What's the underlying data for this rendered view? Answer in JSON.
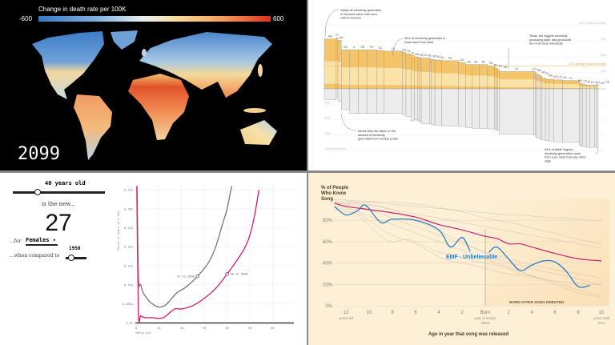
{
  "chart_data": [
    {
      "type": "heatmap",
      "subtype": "choropleth-world-map",
      "legend": {
        "title": "Change in death rate per 100K",
        "min_label": "-600",
        "max_label": "600",
        "min": -600,
        "max": 600,
        "colors": [
          "#3b78c4",
          "#e8eef0",
          "#f7dc98",
          "#dc3220"
        ]
      },
      "year": "2099",
      "background": "#000000"
    },
    {
      "type": "bar",
      "subtype": "variable-width diverging bars (clean vs fossil electricity by state)",
      "colors": {
        "clean": "#f5c469",
        "clean_light": "#fbe3a8",
        "fossil": "#ececec",
        "outline": "#9a9a9a",
        "average": "#f0c36a"
      },
      "gridlines_up": [
        {
          "value": 100,
          "label": "100% clean electricity"
        },
        {
          "value": 75,
          "label": "75%"
        },
        {
          "value": 50,
          "label": "50%"
        },
        {
          "value": 25,
          "label": "25%"
        }
      ],
      "gridlines_down": [
        {
          "value": 25,
          "label": "25%"
        },
        {
          "value": 50,
          "label": "50%"
        },
        {
          "value": 75,
          "label": "75%"
        },
        {
          "value": 100,
          "label": "100% fossil fuels"
        }
      ],
      "average": {
        "value": 36,
        "label": "U.S. average clean electricity"
      },
      "states": [
        {
          "label": "WA",
          "share": 7,
          "clean": 78,
          "fossil": 18
        },
        {
          "label": "VT",
          "share": 1,
          "clean": 80,
          "fossil": 14
        },
        {
          "label": "NH",
          "share": 2,
          "clean": 76,
          "fossil": 20
        },
        {
          "label": "SD",
          "share": 5,
          "clean": 61,
          "fossil": 33
        },
        {
          "label": "IL",
          "share": 5,
          "clean": 61,
          "fossil": 40
        },
        {
          "label": "OR",
          "share": 5,
          "clean": 61,
          "fossil": 40
        },
        {
          "label": "NY",
          "share": 6,
          "clean": 61,
          "fossil": 40
        },
        {
          "label": "SC",
          "share": 4,
          "clean": 60,
          "fossil": 40
        },
        {
          "label": "CA",
          "share": 11,
          "clean": 59,
          "fossil": 40
        },
        {
          "label": "KS",
          "share": 2,
          "clean": 57,
          "fossil": 42
        },
        {
          "label": "TN",
          "share": 3,
          "clean": 55,
          "fossil": 45
        },
        {
          "label": "IA",
          "share": 2,
          "clean": 52,
          "fossil": 52
        },
        {
          "label": "MN",
          "share": 2,
          "clean": 50,
          "fossil": 50
        },
        {
          "label": "NE",
          "share": 1,
          "clean": 49,
          "fossil": 52
        },
        {
          "label": "ID",
          "share": 1,
          "clean": 49,
          "fossil": 53
        },
        {
          "label": "NC",
          "share": 5,
          "clean": 48,
          "fossil": 57
        },
        {
          "label": "MT",
          "share": 1,
          "clean": 47,
          "fossil": 57
        },
        {
          "label": "NJ",
          "share": 2,
          "clean": 46,
          "fossil": 58
        },
        {
          "label": "AL",
          "share": 4,
          "clean": 45,
          "fossil": 59
        },
        {
          "label": "PA",
          "share": 10,
          "clean": 44,
          "fossil": 60
        },
        {
          "label": "AZ",
          "share": 4,
          "clean": 41,
          "fossil": 61
        },
        {
          "label": "OK",
          "share": 4,
          "clean": 38,
          "fossil": 63
        },
        {
          "label": "VA",
          "share": 4,
          "clean": 38,
          "fossil": 64
        },
        {
          "label": "MI",
          "share": 5,
          "clean": 38,
          "fossil": 64
        },
        {
          "label": "GA",
          "share": 4,
          "clean": 36,
          "fossil": 65
        },
        {
          "label": "ND",
          "share": 1,
          "clean": 33,
          "fossil": 66
        },
        {
          "label": "NV",
          "share": 1,
          "clean": 32,
          "fossil": 67
        },
        {
          "label": "AR",
          "share": 1,
          "clean": 30,
          "fossil": 68
        },
        {
          "label": "TX",
          "share": 20,
          "clean": 27,
          "fossil": 73
        },
        {
          "label": "CO",
          "share": 1,
          "clean": 27,
          "fossil": 75
        },
        {
          "label": "NM",
          "share": 1,
          "clean": 25,
          "fossil": 78
        },
        {
          "label": "WI",
          "share": 2,
          "clean": 22,
          "fossil": 80
        },
        {
          "label": "HI",
          "share": 1,
          "clean": 20,
          "fossil": 82
        },
        {
          "label": "MS",
          "share": 2,
          "clean": 17,
          "fossil": 83
        },
        {
          "label": "MD",
          "share": 2,
          "clean": 15,
          "fossil": 84
        },
        {
          "label": "LA",
          "share": 3,
          "clean": 15,
          "fossil": 85
        },
        {
          "label": "OH",
          "share": 5,
          "clean": 14,
          "fossil": 86
        },
        {
          "label": "FL",
          "share": 10,
          "clean": 13,
          "fossil": 87
        },
        {
          "label": "WY",
          "share": 1,
          "clean": 9,
          "fossil": 92
        },
        {
          "label": "UT",
          "share": 1,
          "clean": 8,
          "fossil": 93
        },
        {
          "label": "IN",
          "share": 2,
          "clean": 7,
          "fossil": 94
        },
        {
          "label": "KY",
          "share": 2,
          "clean": 6,
          "fossil": 95
        },
        {
          "label": "MO",
          "share": 3,
          "clean": 6,
          "fossil": 95
        },
        {
          "label": "WV",
          "share": 1,
          "clean": 5,
          "fossil": 94
        },
        {
          "label": "DE",
          "share": 1,
          "clean": 7,
          "fossil": 96
        }
      ],
      "annotations": [
        {
          "lines": [
            "Nearly all electricity generated",
            "in Vermont came from zero-",
            "carbon sources"
          ]
        },
        {
          "lines": [
            "42% of electricity generated in",
            "Iowa came from wind"
          ]
        },
        {
          "lines": [
            "Texas, the biggest electricity",
            "producing state, also produced",
            "the most clean electricity"
          ]
        },
        {
          "lines": [
            "Illinois lead the nation in the",
            "amount of electricity",
            "generated from nuclear power"
          ]
        },
        {
          "lines": [
            "93% of West Virginia",
            "electricity generation came",
            "from coal, more than any other",
            "state"
          ]
        }
      ]
    },
    {
      "type": "line",
      "ylabel": "Chance of Death in a Year",
      "xlabel": "Years old",
      "xlim": [
        0,
        68
      ],
      "ylim": [
        0,
        0.35
      ],
      "x_ticks": [
        "0",
        "10",
        "20",
        "30",
        "40",
        "50",
        "60"
      ],
      "y_ticks": [
        "0.0%",
        "0.050%",
        "0.10%",
        "0.15%",
        "0.20%",
        "0.25%",
        "0.30%",
        "0.35%"
      ],
      "series": [
        {
          "name": "1950",
          "color": "#777777",
          "x": [
            0.4,
            1,
            2,
            3,
            4,
            6,
            8,
            10,
            12,
            14,
            16,
            18,
            22,
            27,
            32,
            35,
            38,
            40,
            42
          ],
          "y": [
            0.36,
            0.12,
            0.1,
            0.08,
            0.07,
            0.055,
            0.046,
            0.041,
            0.043,
            0.052,
            0.066,
            0.079,
            0.094,
            0.122,
            0.16,
            0.2,
            0.26,
            0.3,
            0.36
          ]
        },
        {
          "name": "2020",
          "color": "#d81b6a",
          "x": [
            0.3,
            1,
            2,
            4,
            7,
            10,
            12,
            14,
            17,
            20,
            25,
            30,
            35,
            40,
            45,
            48,
            50,
            52,
            54
          ],
          "y": [
            0.36,
            0.028,
            0.018,
            0.013,
            0.013,
            0.011,
            0.013,
            0.022,
            0.036,
            0.036,
            0.045,
            0.064,
            0.09,
            0.128,
            0.17,
            0.2,
            0.23,
            0.28,
            0.35
          ]
        }
      ],
      "markers": [
        {
          "label": "27 in 1950",
          "x": 27,
          "y": 0.122,
          "series": "1950"
        },
        {
          "label": "40 in 2020",
          "x": 40,
          "y": 0.128,
          "series": "2020"
        }
      ],
      "controls": {
        "age_label": "40 years old",
        "age": 40,
        "is_the_new": "is the new...",
        "equivalent_age": "27",
        "for_label": "...for",
        "sex": "Females",
        "compared_label": "...when compared to",
        "compare_year": "1950"
      }
    },
    {
      "type": "line",
      "ylabel_lines": [
        "% of People",
        "Who Know",
        "Song"
      ],
      "xlabel": "Age in year that song was released",
      "ylim": [
        0,
        100
      ],
      "xlim": [
        -13,
        10
      ],
      "y_ticks": [
        "0%",
        "20%",
        "40%",
        "60%",
        "80%"
      ],
      "x_ticks": [
        {
          "value": -12,
          "label": "12",
          "sub": "years old"
        },
        {
          "value": -10,
          "label": "10"
        },
        {
          "value": -8,
          "label": "8"
        },
        {
          "value": -6,
          "label": "6"
        },
        {
          "value": -4,
          "label": "4"
        },
        {
          "value": -2,
          "label": "2"
        },
        {
          "value": 0,
          "label": "Born",
          "sub": "year of song's",
          "sub2": "debut"
        },
        {
          "value": 2,
          "label": "2"
        },
        {
          "value": 4,
          "label": "4"
        },
        {
          "value": 6,
          "label": "6"
        },
        {
          "value": 8,
          "label": "8"
        },
        {
          "value": 10,
          "label": "10",
          "sub": "years until",
          "sub2": "born"
        }
      ],
      "region_label": "BORN AFTER SONG DEBUTED",
      "highlight_label": "EMF - Unbelievable",
      "colors": {
        "average": "#c8246e",
        "highlight": "#2f7fc8",
        "background": "#b9b2a6"
      },
      "background_x": [
        -13,
        -12,
        -11,
        -10,
        -9,
        -8,
        -7,
        -6,
        -5,
        -4,
        -3,
        -2,
        -1,
        0,
        1,
        2,
        3,
        4,
        5,
        6,
        7,
        8,
        9,
        10
      ],
      "background_series": [
        [
          98,
          98,
          97,
          97,
          96,
          95,
          94,
          93,
          92,
          91,
          90,
          89,
          88,
          87,
          86,
          85,
          85,
          84,
          83,
          82,
          82,
          81,
          80,
          80
        ],
        [
          95,
          96,
          96,
          95,
          93,
          90,
          85,
          80,
          75,
          70,
          65,
          60,
          55,
          50,
          45,
          40,
          38,
          35,
          32,
          30,
          28,
          25,
          22,
          20
        ],
        [
          92,
          90,
          85,
          75,
          65,
          60,
          62,
          60,
          55,
          50,
          48,
          45,
          42,
          40,
          38,
          35,
          30,
          28,
          25,
          22,
          18,
          15,
          12,
          10
        ],
        [
          99,
          99,
          98,
          98,
          97,
          97,
          96,
          95,
          94,
          92,
          90,
          88,
          85,
          82,
          80,
          78,
          76,
          73,
          70,
          68,
          65,
          62,
          60,
          58
        ],
        [
          96,
          95,
          93,
          90,
          86,
          82,
          78,
          74,
          70,
          66,
          62,
          58,
          54,
          50,
          47,
          44,
          41,
          38,
          36,
          34,
          32,
          30,
          28,
          26
        ],
        [
          94,
          92,
          88,
          84,
          80,
          76,
          72,
          68,
          64,
          60,
          56,
          52,
          48,
          44,
          40,
          36,
          32,
          28,
          24,
          20,
          16,
          12,
          10,
          8
        ],
        [
          97,
          96,
          95,
          94,
          92,
          90,
          88,
          86,
          84,
          82,
          80,
          78,
          76,
          74,
          72,
          70,
          68,
          66,
          64,
          62,
          60,
          58,
          56,
          54
        ],
        [
          90,
          88,
          86,
          80,
          72,
          66,
          62,
          58,
          52,
          46,
          42,
          40,
          38,
          35,
          32,
          30,
          28,
          27,
          25,
          23,
          22,
          21,
          20,
          20
        ]
      ],
      "average": {
        "x": [
          -13,
          -12,
          -10,
          -8,
          -6,
          -4,
          -2,
          0,
          1,
          2,
          3,
          4,
          6,
          8,
          10
        ],
        "y": [
          96,
          93,
          90,
          87,
          83,
          76,
          71,
          65,
          63,
          58,
          58,
          55,
          49,
          44,
          42
        ]
      },
      "highlight": {
        "x": [
          -13,
          -12,
          -11,
          -10.3,
          -9,
          -8,
          -6,
          -4,
          -3,
          -2,
          -1.3
        ],
        "y": [
          93,
          85,
          89,
          94,
          78,
          81,
          80,
          71,
          55,
          64,
          51
        ],
        "x2": [
          0.3,
          1,
          2,
          3,
          4,
          5,
          6,
          7,
          8,
          9
        ],
        "y2": [
          50,
          55,
          44,
          33,
          38,
          42,
          41,
          32,
          18,
          19
        ]
      }
    }
  ]
}
